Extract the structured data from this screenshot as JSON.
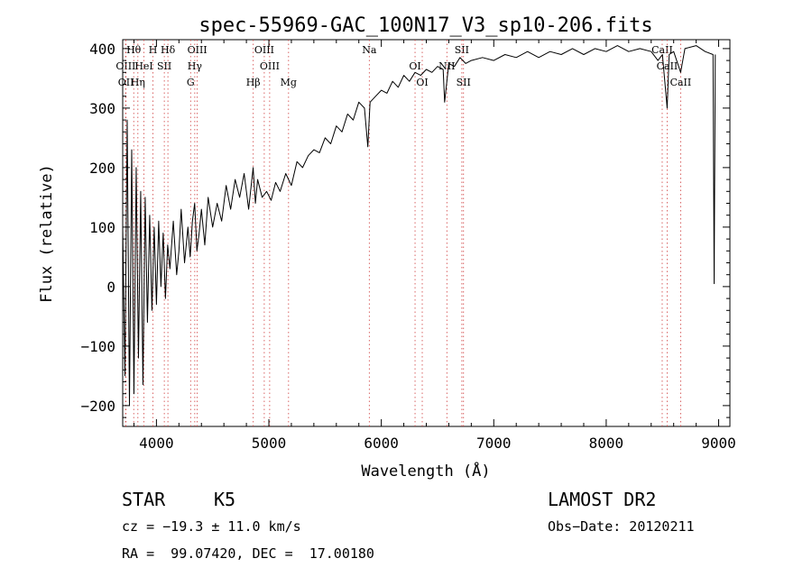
{
  "chart_data": {
    "type": "line",
    "title": "spec-55969-GAC_100N17_V3_sp10-206.fits",
    "xlabel": "Wavelength (Å)",
    "ylabel": "Flux (relative)",
    "xlim": [
      3700,
      9100
    ],
    "ylim": [
      -235,
      415
    ],
    "xticks": [
      4000,
      5000,
      6000,
      7000,
      8000,
      9000
    ],
    "yticks": [
      -200,
      -100,
      0,
      100,
      200,
      300,
      400
    ],
    "xtick_labels": [
      "4000",
      "5000",
      "6000",
      "7000",
      "8000",
      "9000"
    ],
    "ytick_labels": [
      "−200",
      "−100",
      "0",
      "100",
      "200",
      "300",
      "400"
    ],
    "grid": false,
    "series": [
      {
        "color": "#000000",
        "points": [
          [
            3700,
            100
          ],
          [
            3720,
            -150
          ],
          [
            3740,
            280
          ],
          [
            3760,
            -200
          ],
          [
            3780,
            230
          ],
          [
            3800,
            -180
          ],
          [
            3820,
            200
          ],
          [
            3840,
            -120
          ],
          [
            3860,
            160
          ],
          [
            3880,
            -165
          ],
          [
            3900,
            150
          ],
          [
            3920,
            -60
          ],
          [
            3940,
            120
          ],
          [
            3960,
            -40
          ],
          [
            3980,
            100
          ],
          [
            4000,
            -30
          ],
          [
            4020,
            110
          ],
          [
            4040,
            0
          ],
          [
            4060,
            90
          ],
          [
            4080,
            -20
          ],
          [
            4100,
            70
          ],
          [
            4120,
            30
          ],
          [
            4150,
            110
          ],
          [
            4180,
            20
          ],
          [
            4200,
            60
          ],
          [
            4220,
            130
          ],
          [
            4250,
            40
          ],
          [
            4280,
            100
          ],
          [
            4300,
            50
          ],
          [
            4320,
            110
          ],
          [
            4340,
            140
          ],
          [
            4360,
            60
          ],
          [
            4380,
            90
          ],
          [
            4400,
            130
          ],
          [
            4430,
            70
          ],
          [
            4460,
            150
          ],
          [
            4500,
            100
          ],
          [
            4540,
            140
          ],
          [
            4580,
            110
          ],
          [
            4620,
            170
          ],
          [
            4660,
            130
          ],
          [
            4700,
            180
          ],
          [
            4740,
            150
          ],
          [
            4780,
            190
          ],
          [
            4820,
            130
          ],
          [
            4860,
            200
          ],
          [
            4880,
            140
          ],
          [
            4900,
            180
          ],
          [
            4940,
            150
          ],
          [
            4980,
            160
          ],
          [
            5020,
            145
          ],
          [
            5060,
            175
          ],
          [
            5100,
            160
          ],
          [
            5150,
            190
          ],
          [
            5200,
            170
          ],
          [
            5250,
            210
          ],
          [
            5300,
            200
          ],
          [
            5350,
            220
          ],
          [
            5400,
            230
          ],
          [
            5450,
            225
          ],
          [
            5500,
            250
          ],
          [
            5550,
            240
          ],
          [
            5600,
            270
          ],
          [
            5650,
            260
          ],
          [
            5700,
            290
          ],
          [
            5750,
            280
          ],
          [
            5800,
            310
          ],
          [
            5850,
            300
          ],
          [
            5880,
            235
          ],
          [
            5900,
            310
          ],
          [
            5950,
            320
          ],
          [
            6000,
            330
          ],
          [
            6050,
            325
          ],
          [
            6100,
            345
          ],
          [
            6150,
            335
          ],
          [
            6200,
            355
          ],
          [
            6250,
            345
          ],
          [
            6300,
            360
          ],
          [
            6350,
            355
          ],
          [
            6400,
            365
          ],
          [
            6450,
            360
          ],
          [
            6500,
            370
          ],
          [
            6550,
            365
          ],
          [
            6563,
            310
          ],
          [
            6600,
            375
          ],
          [
            6650,
            370
          ],
          [
            6700,
            385
          ],
          [
            6750,
            375
          ],
          [
            6800,
            380
          ],
          [
            6900,
            385
          ],
          [
            7000,
            380
          ],
          [
            7100,
            390
          ],
          [
            7200,
            385
          ],
          [
            7300,
            395
          ],
          [
            7400,
            385
          ],
          [
            7500,
            395
          ],
          [
            7600,
            390
          ],
          [
            7700,
            400
          ],
          [
            7800,
            390
          ],
          [
            7900,
            400
          ],
          [
            8000,
            395
          ],
          [
            8100,
            405
          ],
          [
            8200,
            395
          ],
          [
            8300,
            400
          ],
          [
            8400,
            395
          ],
          [
            8460,
            380
          ],
          [
            8500,
            390
          ],
          [
            8542,
            300
          ],
          [
            8560,
            390
          ],
          [
            8600,
            395
          ],
          [
            8662,
            360
          ],
          [
            8700,
            400
          ],
          [
            8800,
            405
          ],
          [
            8880,
            395
          ],
          [
            8950,
            390
          ],
          [
            8960,
            5
          ],
          [
            8970,
            390
          ]
        ]
      }
    ],
    "line_markers": [
      {
        "label": "Hθ",
        "wavelength": 3798
      },
      {
        "label": "OIII",
        "wavelength": 3727
      },
      {
        "label": "OII",
        "wavelength": 3729
      },
      {
        "label": "H",
        "wavelength": 3969
      },
      {
        "label": "HeI",
        "wavelength": 3889
      },
      {
        "label": "Hη",
        "wavelength": 3835
      },
      {
        "label": "Hδ",
        "wavelength": 4102
      },
      {
        "label": "SII",
        "wavelength": 4070
      },
      {
        "label": "G",
        "wavelength": 4304
      },
      {
        "label": "OIII",
        "wavelength": 4363
      },
      {
        "label": "Hγ",
        "wavelength": 4341
      },
      {
        "label": "Hβ",
        "wavelength": 4861
      },
      {
        "label": "OIII",
        "wavelength": 4959
      },
      {
        "label": "OIII",
        "wavelength": 5007
      },
      {
        "label": "Mg",
        "wavelength": 5175
      },
      {
        "label": "Na",
        "wavelength": 5893
      },
      {
        "label": "OI",
        "wavelength": 6300
      },
      {
        "label": "OI",
        "wavelength": 6364
      },
      {
        "label": "SII",
        "wavelength": 6716
      },
      {
        "label": "NII",
        "wavelength": 6583
      },
      {
        "label": "SII",
        "wavelength": 6731
      },
      {
        "label": "CaII",
        "wavelength": 8498
      },
      {
        "label": "CaII",
        "wavelength": 8542
      },
      {
        "label": "CaII",
        "wavelength": 8662
      }
    ]
  },
  "info": {
    "object_class": "STAR",
    "subclass": "K5",
    "survey": "LAMOST DR2",
    "cz": "cz = −19.3 ± 11.0 km/s",
    "obs_date": "Obs−Date: 20120211",
    "coords": "RA =  99.07420, DEC =  17.00180"
  }
}
